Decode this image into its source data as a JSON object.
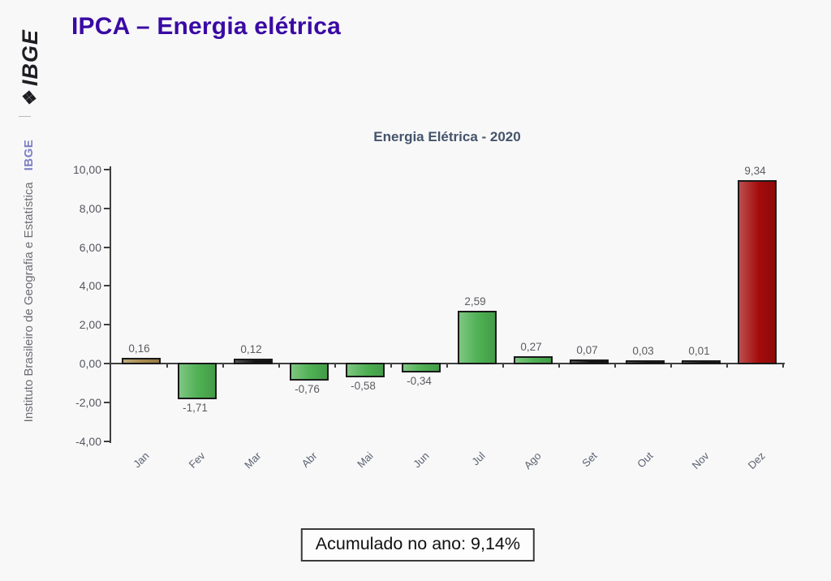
{
  "page": {
    "background": "#f8f8f9"
  },
  "sidebar": {
    "logo_text": "IBGE",
    "org_name": "Instituto Brasileiro de Geografia e Estatística",
    "org_abbrev": "IBGE"
  },
  "header": {
    "title": "IPCA – Energia elétrica",
    "title_color": "#3a0aa4"
  },
  "chart_data": {
    "type": "bar",
    "title": "Energia Elétrica - 2020",
    "categories": [
      "Jan",
      "Fev",
      "Mar",
      "Abr",
      "Mai",
      "Jun",
      "Jul",
      "Ago",
      "Set",
      "Out",
      "Nov",
      "Dez"
    ],
    "values": [
      0.16,
      -1.71,
      0.12,
      -0.76,
      -0.58,
      -0.34,
      2.59,
      0.27,
      0.07,
      0.03,
      0.01,
      9.34
    ],
    "value_labels": [
      "0,16",
      "-1,71",
      "0,12",
      "-0,76",
      "-0,58",
      "-0,34",
      "2,59",
      "0,27",
      "0,07",
      "0,03",
      "0,01",
      "9,34"
    ],
    "bar_colors": [
      "#a98a4d",
      "#4db052",
      "#141414",
      "#4db052",
      "#4db052",
      "#4db052",
      "#4db052",
      "#4db052",
      "#141414",
      "#141414",
      "#141414",
      "#a30b0b"
    ],
    "xlabel": "",
    "ylabel": "",
    "ylim": [
      -4,
      10
    ],
    "ytick_step": 2,
    "ytick_labels": [
      "10,00",
      "8,00",
      "6,00",
      "4,00",
      "2,00",
      "0,00",
      "-2,00",
      "-4,00"
    ],
    "grid": false,
    "legend": null
  },
  "footer": {
    "accumulated_label": "Acumulado no ano: 9,14%"
  }
}
